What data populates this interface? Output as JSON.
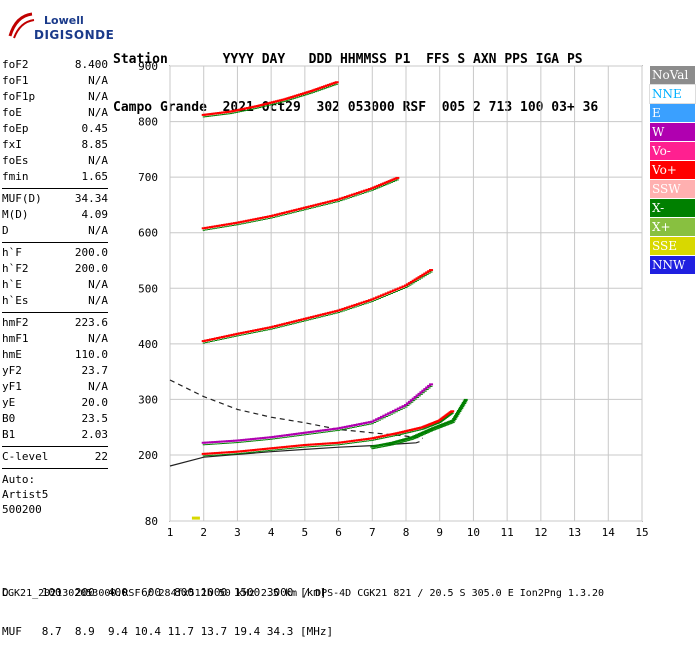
{
  "logo": {
    "line1": "Lowell",
    "line2": "DIGISONDE"
  },
  "header": {
    "row1": "Station       YYYY DAY   DDD HHMMSS P1  FFS S AXN PPS IGA PS",
    "row2": "Campo Grande  2021 Oct29  302 053000 RSF  005 2 713 100 03+ 36"
  },
  "params_groups": [
    [
      {
        "k": "foF2",
        "v": "8.400"
      },
      {
        "k": "foF1",
        "v": "N/A"
      },
      {
        "k": "foF1p",
        "v": "N/A"
      },
      {
        "k": "foE",
        "v": "N/A"
      },
      {
        "k": "foEp",
        "v": "0.45"
      },
      {
        "k": "fxI",
        "v": "8.85"
      },
      {
        "k": "foEs",
        "v": "N/A"
      },
      {
        "k": "fmin",
        "v": "1.65"
      }
    ],
    [
      {
        "k": "MUF(D)",
        "v": "34.34"
      },
      {
        "k": "M(D)",
        "v": "4.09"
      },
      {
        "k": "D",
        "v": "N/A"
      }
    ],
    [
      {
        "k": "h`F",
        "v": "200.0"
      },
      {
        "k": "h`F2",
        "v": "200.0"
      },
      {
        "k": "h`E",
        "v": "N/A"
      },
      {
        "k": "h`Es",
        "v": "N/A"
      }
    ],
    [
      {
        "k": "hmF2",
        "v": "223.6"
      },
      {
        "k": "hmF1",
        "v": "N/A"
      },
      {
        "k": "hmE",
        "v": "110.0"
      },
      {
        "k": "yF2",
        "v": "23.7"
      },
      {
        "k": "yF1",
        "v": "N/A"
      },
      {
        "k": "yE",
        "v": "20.0"
      },
      {
        "k": "B0",
        "v": "23.5"
      },
      {
        "k": "B1",
        "v": "2.03"
      }
    ],
    [
      {
        "k": "C-level",
        "v": "22"
      }
    ]
  ],
  "auto": {
    "label": "Auto:",
    "artist": "Artist5",
    "version": "500200"
  },
  "legend": [
    {
      "label": "NoVal",
      "bg": "#8c8c8c",
      "fg": "#ffffff"
    },
    {
      "label": "NNE",
      "bg": "#ffffff",
      "fg": "#00b0ff"
    },
    {
      "label": "E",
      "bg": "#3aa0ff",
      "fg": "#ffffff"
    },
    {
      "label": "W",
      "bg": "#b000b0",
      "fg": "#ffffff"
    },
    {
      "label": "Vo-",
      "bg": "#ff2090",
      "fg": "#ffffff"
    },
    {
      "label": "Vo+",
      "bg": "#ff0000",
      "fg": "#ffffff"
    },
    {
      "label": "SSW",
      "bg": "#ffb0b0",
      "fg": "#ffffff"
    },
    {
      "label": "X-",
      "bg": "#008000",
      "fg": "#ffffff"
    },
    {
      "label": "X+",
      "bg": "#88c040",
      "fg": "#ffffff"
    },
    {
      "label": "SSE",
      "bg": "#d8d800",
      "fg": "#ffffff"
    },
    {
      "label": "NNW",
      "bg": "#2020e0",
      "fg": "#ffffff"
    }
  ],
  "chart_data": {
    "type": "scatter",
    "x_ticks": [
      "1",
      "2",
      "3",
      "4",
      "5",
      "6",
      "7",
      "8",
      "9",
      "10",
      "11",
      "12",
      "13",
      "14",
      "15"
    ],
    "y_ticks": [
      "80",
      "200",
      "300",
      "400",
      "500",
      "600",
      "700",
      "800",
      "900"
    ],
    "xlim": [
      0.8,
      15
    ],
    "ylim": [
      80,
      900
    ],
    "grid": true,
    "traces": [
      {
        "name": "Vo+",
        "color": "#ff0000",
        "x": [
          2.0,
          3.0,
          4.0,
          5.0,
          6.0,
          7.0,
          7.8,
          8.5,
          9.0,
          9.4
        ],
        "y": [
          202,
          206,
          212,
          218,
          222,
          230,
          240,
          250,
          262,
          280
        ]
      },
      {
        "name": "W",
        "color": "#b000b0",
        "x": [
          2.0,
          3.0,
          4.0,
          5.0,
          6.0,
          7.0,
          8.0,
          8.8
        ],
        "y": [
          222,
          226,
          232,
          240,
          248,
          260,
          290,
          330
        ]
      },
      {
        "name": "Vo+",
        "color": "#ff0000",
        "x": [
          2.0,
          3.0,
          4.0,
          5.0,
          6.0,
          7.0,
          8.0,
          8.8
        ],
        "y": [
          405,
          418,
          430,
          445,
          460,
          480,
          505,
          535
        ]
      },
      {
        "name": "Vo+",
        "color": "#ff0000",
        "x": [
          2.0,
          3.0,
          4.0,
          5.0,
          6.0,
          7.0,
          7.8
        ],
        "y": [
          608,
          618,
          630,
          645,
          660,
          680,
          700
        ]
      },
      {
        "name": "Vo+",
        "color": "#ff0000",
        "x": [
          2.0,
          2.8,
          3.6,
          4.4,
          5.2,
          6.0
        ],
        "y": [
          812,
          818,
          828,
          840,
          855,
          872
        ]
      },
      {
        "name": "X-",
        "color": "#008000",
        "x": [
          7.0,
          7.6,
          8.2,
          8.8,
          9.4,
          9.8
        ],
        "y": [
          215,
          222,
          232,
          248,
          262,
          302
        ]
      }
    ],
    "curves": [
      {
        "style": "solid",
        "x": [
          1.0,
          2.0,
          3.0,
          4.0,
          5.0,
          6.0,
          7.0,
          7.8,
          8.3,
          8.4
        ],
        "y": [
          180,
          196,
          201,
          206,
          210,
          214,
          217,
          220,
          222,
          224
        ]
      },
      {
        "style": "dashed",
        "x": [
          1.0,
          2.0,
          3.0,
          4.0,
          5.0,
          6.0,
          7.0,
          8.0,
          8.5
        ],
        "y": [
          335,
          305,
          282,
          268,
          258,
          246,
          240,
          234,
          230
        ]
      }
    ]
  },
  "bottom": {
    "row_d": "D     100  200  400  600  800 1000 1500 3000 [km]",
    "row_muf": "MUF   8.7  8.9  9.4 10.4 11.7 13.7 19.4 34.3 [MHz]"
  },
  "footer": "CGK21_2021302053000.RSF / 284fx512h 50 kHz 2.5 km / DPS-4D CGK21 821 / 20.5 S 305.0 E Ion2Png 1.3.20"
}
